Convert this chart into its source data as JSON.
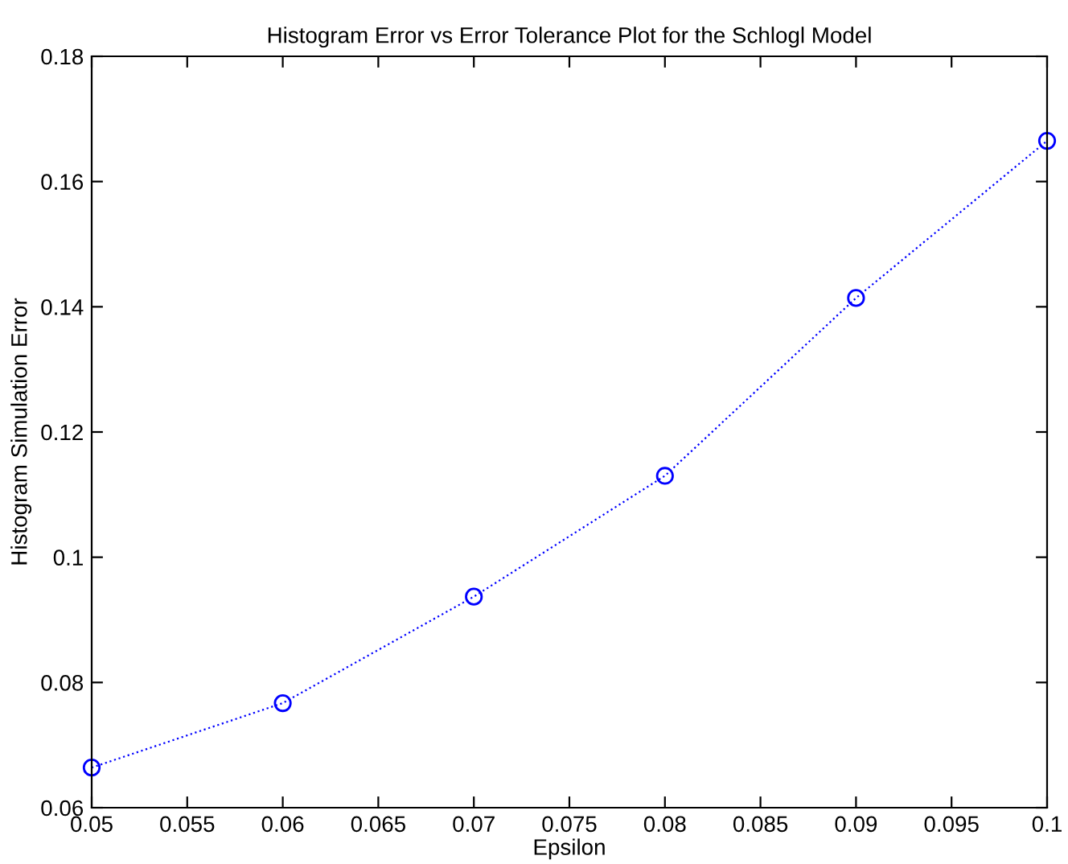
{
  "chart_data": {
    "type": "line",
    "title": "Histogram Error vs Error Tolerance Plot for the Schlogl Model",
    "xlabel": "Epsilon",
    "ylabel": "Histogram Simulation Error",
    "x": [
      0.05,
      0.06,
      0.07,
      0.08,
      0.09,
      0.1
    ],
    "series": [
      {
        "color": "#0000ff",
        "values": [
          0.0664,
          0.0767,
          0.0937,
          0.113,
          0.1414,
          0.1665
        ]
      }
    ],
    "marker": "circle",
    "line_style": "dotted",
    "grid": false,
    "legend": false,
    "xlim": [
      0.05,
      0.1
    ],
    "xticks": [
      0.05,
      0.055,
      0.06,
      0.065,
      0.07,
      0.075,
      0.08,
      0.085,
      0.09,
      0.095,
      0.1
    ],
    "ylim": [
      0.06,
      0.18
    ],
    "yticks": [
      0.06,
      0.08,
      0.1,
      0.12,
      0.14,
      0.16,
      0.18
    ]
  }
}
